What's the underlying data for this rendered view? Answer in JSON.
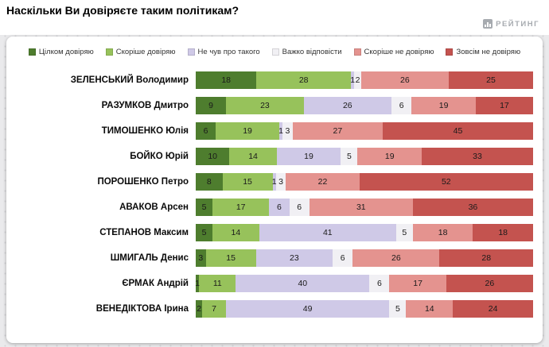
{
  "header": {
    "title": "Наскільки Ви довіряєте таким політикам?",
    "logo_text": "РЕЙТИНГ"
  },
  "chart_data": {
    "type": "bar",
    "orientation": "horizontal",
    "stacked": true,
    "unit": "percent",
    "title": "Наскільки Ви довіряєте таким політикам?",
    "legend_position": "top",
    "xlim": [
      0,
      100
    ],
    "categories": [
      "ЗЕЛЕНСЬКИЙ Володимир",
      "РАЗУМКОВ Дмитро",
      "ТИМОШЕНКО Юлія",
      "БОЙКО Юрій",
      "ПОРОШЕНКО Петро",
      "АВАКОВ Арсен",
      "СТЕПАНОВ Максим",
      "ШМИГАЛЬ Денис",
      "ЄРМАК Андрій",
      "ВЕНЕДІКТОВА Ірина"
    ],
    "series": [
      {
        "name": "Цілком довіряю",
        "color": "#4e7d2e",
        "values": [
          18,
          9,
          6,
          10,
          8,
          5,
          5,
          3,
          1,
          2
        ]
      },
      {
        "name": "Скоріше довіряю",
        "color": "#97c25b",
        "values": [
          28,
          23,
          19,
          14,
          15,
          17,
          14,
          15,
          11,
          7
        ]
      },
      {
        "name": "Не чув про такого",
        "color": "#cfc9e7",
        "values": [
          1,
          26,
          1,
          19,
          1,
          6,
          41,
          23,
          40,
          49
        ]
      },
      {
        "name": "Важко відповісти",
        "color": "#f1f0f4",
        "values": [
          2,
          6,
          3,
          5,
          3,
          6,
          5,
          6,
          6,
          5
        ]
      },
      {
        "name": "Скоріше не довіряю",
        "color": "#e4938f",
        "values": [
          26,
          19,
          27,
          19,
          22,
          31,
          18,
          26,
          17,
          14
        ]
      },
      {
        "name": "Зовсім не довіряю",
        "color": "#c4534f",
        "values": [
          25,
          17,
          45,
          33,
          52,
          36,
          18,
          28,
          26,
          24
        ]
      }
    ]
  }
}
